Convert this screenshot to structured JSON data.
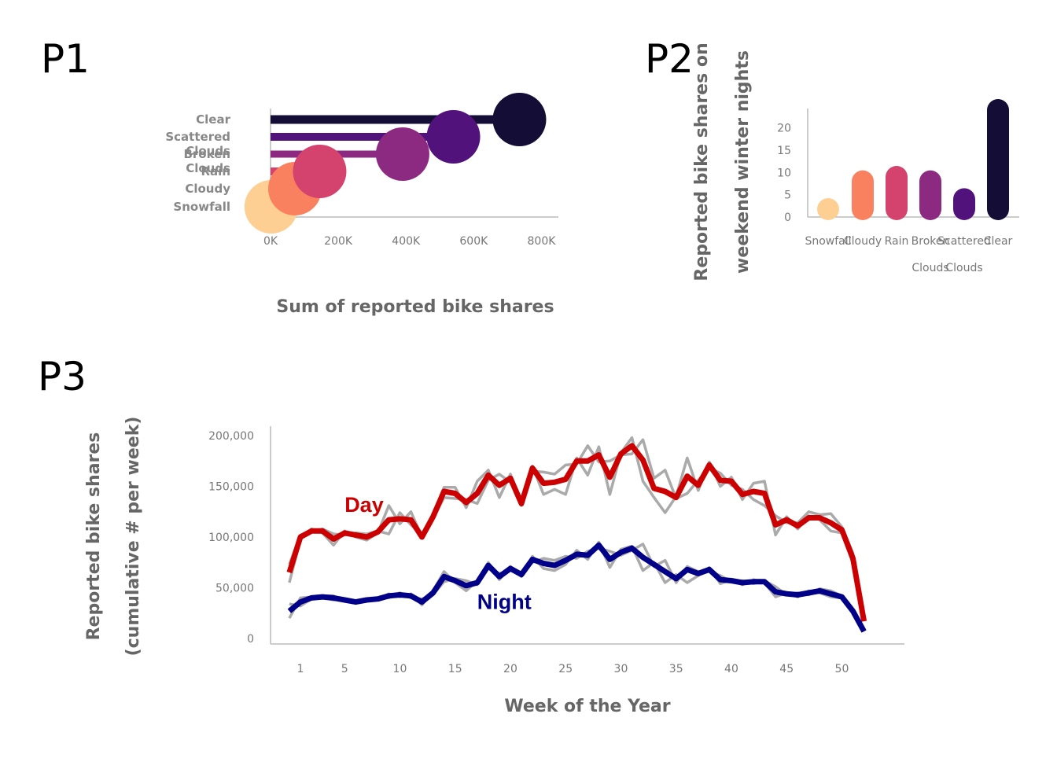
{
  "panels": {
    "p1": "P1",
    "p2": "P2",
    "p3": "P3"
  },
  "chart_data": [
    {
      "id": "p1",
      "type": "bar",
      "orientation": "horizontal",
      "categories": [
        "Clear",
        "Scattered Clouds",
        "Broken Clouds",
        "Rain",
        "Cloudy",
        "Snowfall"
      ],
      "category_label_lines": [
        [
          "Clear"
        ],
        [
          "Scattered",
          "Clouds"
        ],
        [
          "Broken",
          "Clouds"
        ],
        [
          "Rain"
        ],
        [
          "Cloudy"
        ],
        [
          "Snowfall"
        ]
      ],
      "values": [
        735000,
        540000,
        390000,
        145000,
        72000,
        2000
      ],
      "colors": [
        "#140e36",
        "#51127c",
        "#8c2981",
        "#d3436e",
        "#fa815f",
        "#fecf92"
      ],
      "xlim": [
        0,
        850000
      ],
      "xticks": [
        0,
        200000,
        400000,
        600000,
        800000
      ],
      "xtick_labels": [
        "0K",
        "200K",
        "400K",
        "600K",
        "800K"
      ],
      "xlabel": "Sum of reported bike shares",
      "ylabel": "",
      "grid": false
    },
    {
      "id": "p2",
      "type": "bar",
      "orientation": "vertical",
      "categories": [
        "Snowfall",
        "Cloudy",
        "Rain",
        "Broken Clouds",
        "Scattered Clouds",
        "Clear"
      ],
      "category_label_lines": [
        [
          "Snowfall"
        ],
        [
          "Cloudy"
        ],
        [
          "Rain"
        ],
        [
          "Broken",
          "Clouds"
        ],
        [
          "Scattered",
          "Clouds"
        ],
        [
          "Clear"
        ]
      ],
      "values": [
        1,
        8,
        9,
        8,
        4,
        24
      ],
      "colors": [
        "#fecf92",
        "#fa815f",
        "#d3436e",
        "#8c2981",
        "#51127c",
        "#140e36"
      ],
      "ylim": [
        0,
        24
      ],
      "yticks": [
        0,
        5,
        10,
        15,
        20
      ],
      "xlabel": "",
      "ylabel": "Reported bike shares on weekend winter nights",
      "ylabel_lines": [
        "Reported bike shares on",
        "weekend winter nights"
      ],
      "grid": false
    },
    {
      "id": "p3",
      "type": "line",
      "x_start": 0,
      "xlim": [
        -1,
        54
      ],
      "xticks": [
        1,
        5,
        10,
        15,
        20,
        25,
        30,
        35,
        40,
        45,
        50
      ],
      "ylim": [
        0,
        210000
      ],
      "yticks": [
        0,
        50000,
        100000,
        150000,
        200000
      ],
      "ytick_labels": [
        "0",
        "50,000",
        "100,000",
        "150,000",
        "200,000"
      ],
      "xlabel": "Week of the Year",
      "ylabel": "Reported bike shares (cumulative # per week)",
      "ylabel_lines": [
        "Reported bike shares",
        "(cumulative # per week)"
      ],
      "grid": false,
      "series": [
        {
          "name": "Day",
          "color": "#cc0000",
          "values": [
            65000,
            100000,
            106000,
            106000,
            98000,
            104000,
            102000,
            100000,
            105000,
            117000,
            118000,
            117000,
            100000,
            120000,
            145000,
            143000,
            134000,
            143000,
            161000,
            151000,
            158000,
            133000,
            168000,
            153000,
            154000,
            157000,
            175000,
            175000,
            181000,
            159000,
            182000,
            190000,
            176000,
            148000,
            145000,
            139000,
            160000,
            151000,
            171000,
            156000,
            155000,
            142000,
            145000,
            143000,
            112000,
            117000,
            111000,
            119000,
            119000,
            114000,
            107000,
            79000,
            17000
          ]
        },
        {
          "name": "Night",
          "color": "#000088",
          "values": [
            27000,
            36000,
            40000,
            41000,
            40000,
            38000,
            36000,
            38000,
            39000,
            42000,
            43000,
            42000,
            36000,
            45000,
            61000,
            57000,
            52000,
            55000,
            72000,
            61000,
            69000,
            63000,
            78000,
            74000,
            72000,
            77000,
            83000,
            82000,
            92000,
            78000,
            85000,
            89000,
            80000,
            73000,
            66000,
            59000,
            68000,
            64000,
            68000,
            58000,
            57000,
            55000,
            56000,
            56000,
            46000,
            44000,
            43000,
            45000,
            47000,
            44000,
            41000,
            27000,
            7000
          ]
        }
      ],
      "background_series_color": "#aaaaaa",
      "background_series": [
        [
          55000,
          98000,
          108000,
          104000,
          92000,
          106000,
          100000,
          97000,
          104000,
          131000,
          113000,
          125000,
          100000,
          122000,
          149000,
          149000,
          129000,
          155000,
          166000,
          139000,
          162000,
          131000,
          170000,
          142000,
          147000,
          142000,
          178000,
          161000,
          189000,
          142000,
          183000,
          198000,
          155000,
          139000,
          124000,
          140000,
          178000,
          146000,
          174000,
          150000,
          159000,
          137000,
          153000,
          155000,
          102000,
          120000,
          108000,
          121000,
          117000,
          106000,
          104000,
          74000,
          17000
        ],
        [
          73000,
          102000,
          105000,
          108000,
          103000,
          102000,
          104000,
          103000,
          106000,
          103000,
          124000,
          112000,
          102000,
          118000,
          139000,
          138000,
          137000,
          133000,
          156000,
          162000,
          154000,
          135000,
          165000,
          164000,
          162000,
          171000,
          172000,
          190000,
          174000,
          175000,
          181000,
          182000,
          196000,
          158000,
          166000,
          138000,
          143000,
          156000,
          168000,
          163000,
          151000,
          147000,
          137000,
          131000,
          121000,
          114000,
          114000,
          125000,
          122000,
          123000,
          110000,
          84000,
          17000
        ],
        [
          20000,
          40000,
          41000,
          40000,
          38000,
          39000,
          36000,
          37000,
          38000,
          44000,
          41000,
          44000,
          33000,
          47000,
          66000,
          55000,
          47000,
          57000,
          75000,
          58000,
          71000,
          61000,
          81000,
          69000,
          67000,
          73000,
          87000,
          78000,
          95000,
          70000,
          88000,
          91000,
          67000,
          75000,
          55000,
          63000,
          55000,
          62000,
          70000,
          54000,
          58000,
          53000,
          58000,
          55000,
          41000,
          45000,
          41000,
          47000,
          45000,
          41000,
          40000,
          25000,
          7000
        ],
        [
          34000,
          32000,
          39000,
          42000,
          42000,
          37000,
          36000,
          39000,
          40000,
          40000,
          45000,
          40000,
          39000,
          43000,
          56000,
          59000,
          57000,
          53000,
          69000,
          64000,
          67000,
          65000,
          75000,
          79000,
          77000,
          81000,
          79000,
          86000,
          89000,
          86000,
          82000,
          87000,
          93000,
          71000,
          77000,
          55000,
          71000,
          66000,
          66000,
          62000,
          56000,
          57000,
          54000,
          57000,
          51000,
          43000,
          45000,
          43000,
          49000,
          47000,
          42000,
          29000,
          7000
        ]
      ],
      "annotations": [
        {
          "text": "Day",
          "x": 5,
          "y": 125000,
          "color": "#cc0000"
        },
        {
          "text": "Night",
          "x": 17,
          "y": 29000,
          "color": "#000088"
        }
      ]
    }
  ]
}
